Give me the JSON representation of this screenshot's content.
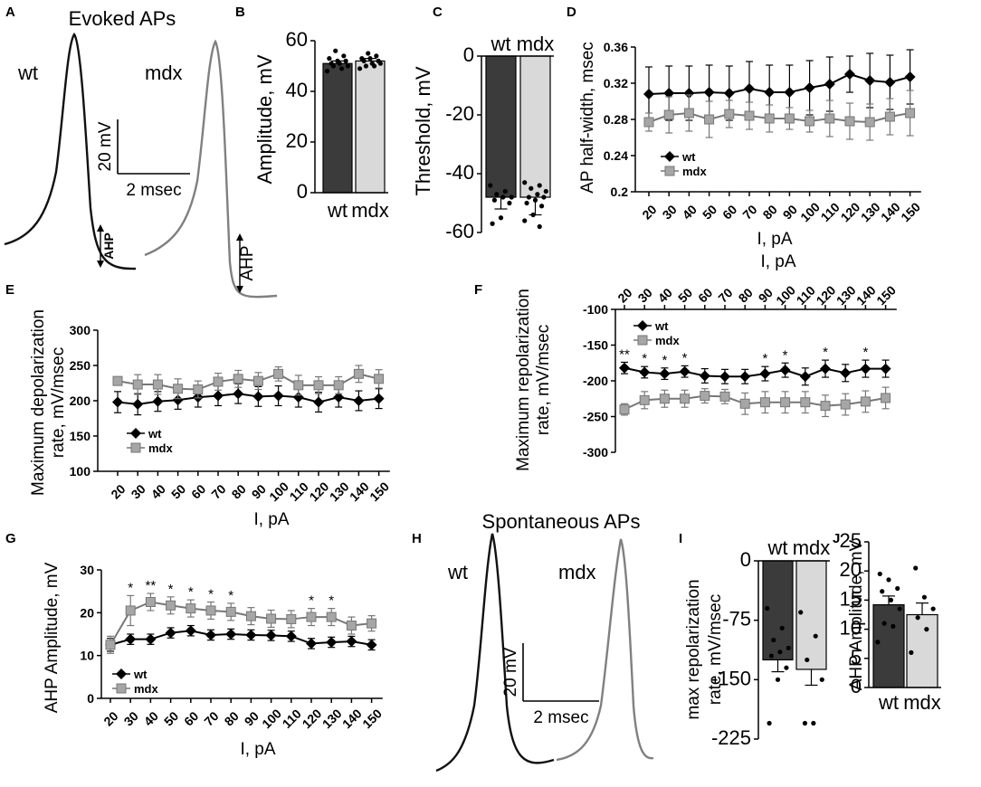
{
  "chart_data": [
    {
      "panel": "A",
      "type": "line",
      "title": "Evoked APs",
      "labels": {
        "wt": "wt",
        "mdx": "mdx"
      },
      "scale_bar": {
        "voltage": "20 mV",
        "time": "2 msec"
      },
      "annotations": [
        "AHP",
        "AHP"
      ],
      "colors": {
        "wt": "#111111",
        "mdx": "#808080"
      }
    },
    {
      "panel": "B",
      "type": "bar",
      "categories": [
        "wt",
        "mdx"
      ],
      "values": [
        51,
        52
      ],
      "errors": [
        1,
        1
      ],
      "points": [
        [
          48,
          49,
          50,
          50,
          51,
          51,
          52,
          52,
          53,
          54,
          56
        ],
        [
          49,
          50,
          50,
          51,
          51,
          52,
          52,
          53,
          53,
          54,
          55
        ]
      ],
      "ylabel": "Amplitude, mV",
      "ylim": [
        0,
        60
      ],
      "yticks": [
        "0",
        "20",
        "40",
        "60"
      ],
      "colors": [
        "#3b3b3b",
        "#d9d9d9"
      ]
    },
    {
      "panel": "C",
      "type": "bar",
      "categories": [
        "wt",
        "mdx"
      ],
      "values": [
        -48,
        -48
      ],
      "errors": [
        4,
        6
      ],
      "points": [
        [
          -44,
          -46,
          -47,
          -48,
          -48,
          -49,
          -50,
          -55,
          -57
        ],
        [
          -43,
          -44,
          -45,
          -46,
          -47,
          -48,
          -48,
          -49,
          -50,
          -51,
          -54,
          -56,
          -58
        ]
      ],
      "ylabel": "Threshold, mV",
      "ylim": [
        -60,
        0
      ],
      "yticks": [
        "0",
        "-20",
        "-40",
        "-60"
      ],
      "colors": [
        "#3b3b3b",
        "#d9d9d9"
      ]
    },
    {
      "panel": "D",
      "type": "line",
      "x": [
        20,
        30,
        40,
        50,
        60,
        70,
        80,
        90,
        100,
        110,
        120,
        130,
        140,
        150
      ],
      "xticks": [
        "20",
        "30",
        "40",
        "50",
        "60",
        "70",
        "80",
        "90",
        "100",
        "110",
        "120",
        "130",
        "140",
        "150"
      ],
      "series": [
        {
          "name": "wt",
          "values": [
            0.308,
            0.309,
            0.309,
            0.31,
            0.309,
            0.314,
            0.31,
            0.31,
            0.315,
            0.319,
            0.33,
            0.323,
            0.321,
            0.327
          ],
          "errors": [
            0.03,
            0.03,
            0.03,
            0.03,
            0.03,
            0.03,
            0.03,
            0.03,
            0.03,
            0.03,
            0.02,
            0.03,
            0.03,
            0.03
          ]
        },
        {
          "name": "mdx",
          "values": [
            0.277,
            0.285,
            0.287,
            0.28,
            0.286,
            0.284,
            0.281,
            0.281,
            0.278,
            0.281,
            0.278,
            0.277,
            0.283,
            0.287
          ],
          "errors": [
            0.01,
            0.02,
            0.02,
            0.02,
            0.015,
            0.015,
            0.015,
            0.012,
            0.012,
            0.02,
            0.02,
            0.02,
            0.02,
            0.025
          ]
        }
      ],
      "xlabel": "I, pA",
      "ylabel": "AP half-width, msec",
      "ylim": [
        0.2,
        0.36
      ],
      "yticks": [
        "0.2",
        "0.24",
        "0.28",
        "0.32",
        "0.36"
      ]
    },
    {
      "panel": "E",
      "type": "line",
      "x": [
        20,
        30,
        40,
        50,
        60,
        70,
        80,
        90,
        100,
        110,
        120,
        130,
        140,
        150
      ],
      "xticks": [
        "20",
        "30",
        "40",
        "50",
        "60",
        "70",
        "80",
        "90",
        "100",
        "110",
        "120",
        "130",
        "140",
        "150"
      ],
      "series": [
        {
          "name": "wt",
          "values": [
            198,
            195,
            199,
            201,
            205,
            207,
            210,
            206,
            207,
            205,
            198,
            205,
            200,
            203
          ],
          "errors": [
            15,
            15,
            14,
            13,
            14,
            14,
            14,
            14,
            14,
            14,
            14,
            14,
            14,
            14
          ]
        },
        {
          "name": "mdx",
          "values": [
            228,
            223,
            223,
            217,
            216,
            227,
            231,
            228,
            238,
            222,
            222,
            222,
            238,
            231
          ],
          "errors": [
            6,
            14,
            14,
            14,
            12,
            12,
            12,
            12,
            10,
            14,
            12,
            12,
            12,
            13
          ]
        }
      ],
      "xlabel": "I, pA",
      "ylabel": "Maximum depolarization rate, mV/msec",
      "ylim": [
        100,
        300
      ],
      "yticks": [
        "300",
        "250",
        "200",
        "150",
        "100"
      ]
    },
    {
      "panel": "F",
      "type": "line",
      "x": [
        20,
        30,
        40,
        50,
        60,
        70,
        80,
        90,
        100,
        110,
        120,
        130,
        140,
        150
      ],
      "xticks": [
        "20",
        "30",
        "40",
        "50",
        "60",
        "70",
        "80",
        "90",
        "100",
        "110",
        "120",
        "130",
        "140",
        "150"
      ],
      "series": [
        {
          "name": "wt",
          "values": [
            -182,
            -188,
            -190,
            -187,
            -193,
            -194,
            -194,
            -190,
            -185,
            -194,
            -183,
            -189,
            -183,
            -183
          ],
          "errors": [
            8,
            8,
            8,
            8,
            10,
            10,
            10,
            10,
            10,
            12,
            12,
            12,
            12,
            12
          ]
        },
        {
          "name": "mdx",
          "values": [
            -240,
            -227,
            -225,
            -225,
            -221,
            -222,
            -232,
            -230,
            -230,
            -230,
            -235,
            -233,
            -229,
            -224
          ],
          "errors": [
            8,
            12,
            12,
            12,
            10,
            10,
            15,
            15,
            15,
            15,
            15,
            15,
            15,
            15
          ]
        }
      ],
      "significance": [
        "**",
        "*",
        "*",
        "*",
        "",
        "",
        "",
        "*",
        "*",
        "",
        "*",
        "",
        "*",
        ""
      ],
      "xlabel": "I, pA",
      "ylabel": "Maximum repolarization rate, mV/msec",
      "ylim": [
        -300,
        -100
      ],
      "yticks": [
        "-100",
        "-150",
        "-200",
        "-250",
        "-300"
      ]
    },
    {
      "panel": "G",
      "type": "line",
      "x": [
        20,
        30,
        40,
        50,
        60,
        70,
        80,
        90,
        100,
        110,
        120,
        130,
        140,
        150
      ],
      "xticks": [
        "20",
        "30",
        "40",
        "50",
        "60",
        "70",
        "80",
        "90",
        "100",
        "110",
        "120",
        "130",
        "140",
        "150"
      ],
      "series": [
        {
          "name": "wt",
          "values": [
            12.5,
            13.8,
            13.8,
            15.3,
            15.8,
            14.8,
            15,
            14.8,
            14.7,
            14.5,
            12.8,
            13.1,
            13.3,
            12.5
          ],
          "errors": [
            1.5,
            1.2,
            1.2,
            1.2,
            1.2,
            1.2,
            1.2,
            1.2,
            1.2,
            1.2,
            1.2,
            1.2,
            1.2,
            1.2
          ]
        },
        {
          "name": "mdx",
          "values": [
            12.5,
            20.5,
            22.5,
            21.7,
            21,
            20.5,
            20.2,
            19.2,
            18.6,
            18.5,
            19,
            19,
            17,
            17.5
          ],
          "errors": [
            2,
            3.5,
            2,
            2,
            2,
            2,
            2,
            2,
            2,
            2,
            2,
            2,
            2,
            1.8
          ]
        }
      ],
      "significance": [
        "",
        "*",
        "**",
        "*",
        "*",
        "*",
        "*",
        "",
        "",
        "",
        "*",
        "*",
        "",
        ""
      ],
      "xlabel": "I, pA",
      "ylabel": "AHP Amplitude, mV",
      "ylim": [
        0,
        30
      ],
      "yticks": [
        "0",
        "10",
        "20",
        "30"
      ]
    },
    {
      "panel": "H",
      "type": "line",
      "title": "Spontaneous APs",
      "labels": {
        "wt": "wt",
        "mdx": "mdx"
      },
      "scale_bar": {
        "voltage": "20 mV",
        "time": "2 msec"
      },
      "colors": {
        "wt": "#111111",
        "mdx": "#808080"
      }
    },
    {
      "panel": "I",
      "type": "bar",
      "categories": [
        "wt",
        "mdx"
      ],
      "values": [
        -125,
        -137
      ],
      "errors": [
        15,
        20
      ],
      "points": [
        [
          -60,
          -85,
          -100,
          -110,
          -115,
          -120,
          -135,
          -150,
          -205
        ],
        [
          -65,
          -95,
          -125,
          -150,
          -205,
          -205
        ]
      ],
      "ylabel": "max repolarization rate, mV/msec",
      "ylim": [
        -225,
        0
      ],
      "yticks": [
        "0",
        "-75",
        "-150",
        "-225"
      ],
      "colors": [
        "#3b3b3b",
        "#d9d9d9"
      ]
    },
    {
      "panel": "J",
      "type": "bar",
      "categories": [
        "wt",
        "mdx"
      ],
      "values": [
        14.2,
        12.5
      ],
      "errors": [
        1.5,
        2
      ],
      "points": [
        [
          7.8,
          10.5,
          11,
          13.5,
          15,
          16.5,
          17,
          18.5,
          19.5
        ],
        [
          6,
          10,
          12,
          13.5,
          15.5,
          20.5
        ]
      ],
      "ylabel": "AHP Amplitude, mV",
      "ylim": [
        0,
        25
      ],
      "yticks": [
        "0",
        "5",
        "10",
        "15",
        "20",
        "25"
      ],
      "colors": [
        "#3b3b3b",
        "#d9d9d9"
      ]
    }
  ]
}
